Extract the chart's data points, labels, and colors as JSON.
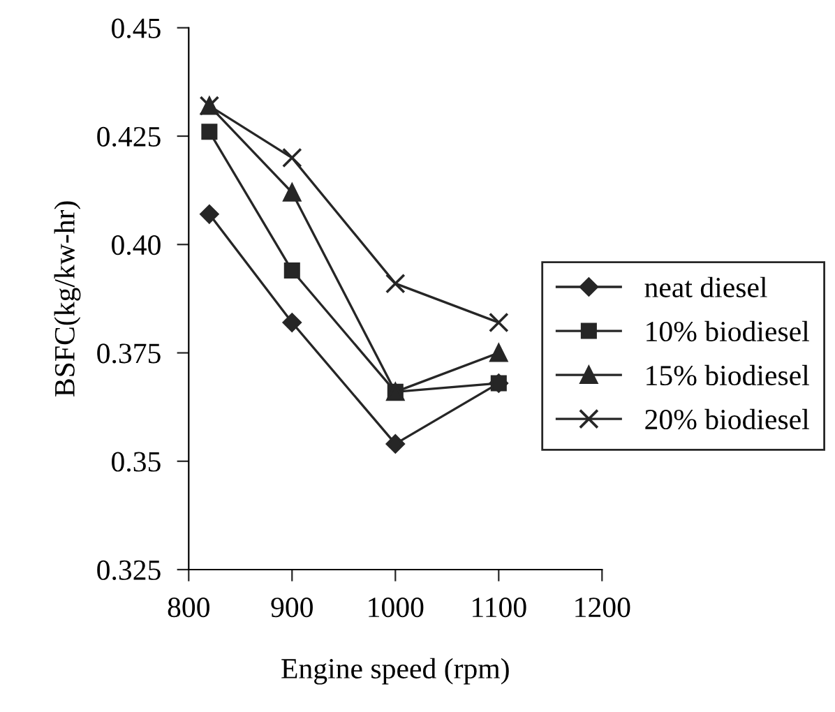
{
  "chart_data": {
    "type": "line",
    "xlabel": "Engine speed (rpm)",
    "ylabel": "BSFC(kg/kw-hr)",
    "xlim": [
      800,
      1200
    ],
    "xticks": [
      800,
      900,
      1000,
      1100,
      1200
    ],
    "ylim": [
      0.325,
      0.45
    ],
    "yticks": [
      0.325,
      0.35,
      0.375,
      {
        "value": 0.4,
        "label": "0.40"
      },
      0.425,
      0.45
    ],
    "grid": false,
    "legend": "right",
    "line_style": "solid",
    "series": [
      {
        "name": "neat diesel",
        "color": "#262626",
        "marker": "diamond",
        "x": [
          820,
          900,
          1000,
          1100
        ],
        "values": [
          0.407,
          0.382,
          0.354,
          0.368
        ]
      },
      {
        "name": "10% biodiesel",
        "color": "#262626",
        "marker": "square",
        "x": [
          820,
          900,
          1000,
          1100
        ],
        "values": [
          0.426,
          0.394,
          0.366,
          0.368
        ]
      },
      {
        "name": "15% biodiesel",
        "color": "#262626",
        "marker": "triangle",
        "x": [
          820,
          900,
          1000,
          1100
        ],
        "values": [
          0.432,
          0.412,
          0.366,
          0.375
        ]
      },
      {
        "name": "20% biodiesel",
        "color": "#262626",
        "marker": "cross",
        "x": [
          820,
          900,
          1000,
          1100
        ],
        "values": [
          0.432,
          0.42,
          0.391,
          0.382
        ]
      }
    ]
  }
}
